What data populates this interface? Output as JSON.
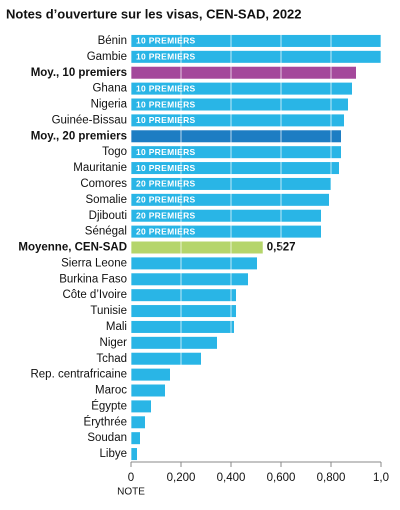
{
  "chart_data": {
    "type": "bar",
    "orientation": "horizontal",
    "title": "Notes d’ouverture sur les visas, CEN-SAD, 2022",
    "x_label": "NOTE",
    "categories": [
      "Bénin",
      "Gambie",
      "Moy., 10 premiers",
      "Ghana",
      "Nigeria",
      "Guinée-Bissau",
      "Moy., 20 premiers",
      "Togo",
      "Mauritanie",
      "Comores",
      "Somalie",
      "Djibouti",
      "Sénégal",
      "Moyenne, CEN-SAD",
      "Sierra Leone",
      "Burkina Faso",
      "Côte d’Ivoire",
      "Tunisie",
      "Mali",
      "Niger",
      "Tchad",
      "Rep. centrafricaine",
      "Maroc",
      "Égypte",
      "Érythrée",
      "Soudan",
      "Libye"
    ],
    "values": [
      1.0,
      1.0,
      0.9,
      0.884,
      0.868,
      0.852,
      0.84,
      0.84,
      0.832,
      0.8,
      0.792,
      0.76,
      0.76,
      0.527,
      0.504,
      0.468,
      0.42,
      0.42,
      0.412,
      0.344,
      0.28,
      0.156,
      0.136,
      0.08,
      0.056,
      0.036,
      0.024
    ],
    "value_labels": [
      null,
      null,
      null,
      null,
      null,
      null,
      null,
      null,
      null,
      null,
      null,
      null,
      null,
      "0,527",
      null,
      null,
      null,
      null,
      null,
      null,
      null,
      null,
      null,
      null,
      null,
      null,
      null
    ],
    "tags": [
      "10 PREMIERS",
      "10 PREMIERS",
      null,
      "10 PREMIERS",
      "10 PREMIERS",
      "10 PREMIERS",
      null,
      "10 PREMIERS",
      "10 PREMIERS",
      "20 PREMIERS",
      "20 PREMIERS",
      "20 PREMIERS",
      "20 PREMIERS",
      null,
      null,
      null,
      null,
      null,
      null,
      null,
      null,
      null,
      null,
      null,
      null,
      null,
      null
    ],
    "color": "#29b5e6",
    "colors": [
      "#29b5e6",
      "#29b5e6",
      "#a4489b",
      "#29b5e6",
      "#29b5e6",
      "#29b5e6",
      "#1d7dc3",
      "#29b5e6",
      "#29b5e6",
      "#29b5e6",
      "#29b5e6",
      "#29b5e6",
      "#29b5e6",
      "#b5d56b",
      "#29b5e6",
      "#29b5e6",
      "#29b5e6",
      "#29b5e6",
      "#29b5e6",
      "#29b5e6",
      "#29b5e6",
      "#29b5e6",
      "#29b5e6",
      "#29b5e6",
      "#29b5e6",
      "#29b5e6",
      "#29b5e6"
    ],
    "xlim": [
      0,
      1.0
    ],
    "xticks": [
      0,
      {
        "value": 0.2,
        "label": "0,200"
      },
      {
        "value": 0.4,
        "label": "0,400"
      },
      {
        "value": 0.6,
        "label": "0,600"
      },
      {
        "value": 0.8,
        "label": "0,800"
      },
      {
        "value": 1.0,
        "label": "1,0"
      }
    ],
    "grid": true
  }
}
